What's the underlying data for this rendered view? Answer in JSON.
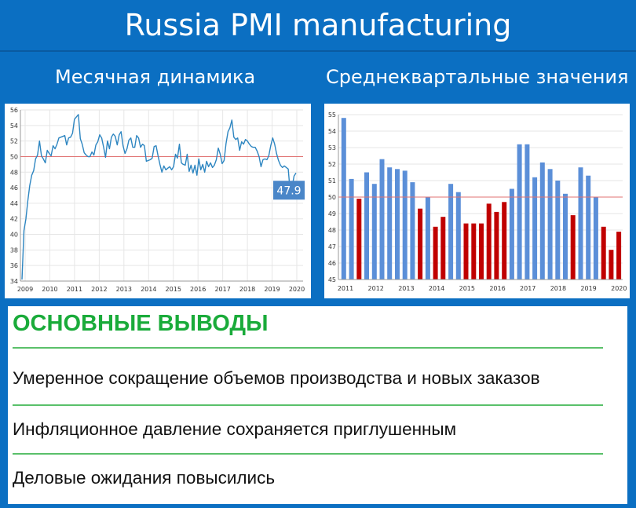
{
  "header": {
    "title": "Russia PMI manufacturing"
  },
  "left_title": "Месячная динамика",
  "right_title": "Среднеквартальные значения",
  "conclusions": {
    "heading": "ОСНОВНЫЕ ВЫВОДЫ",
    "items": [
      "Умеренное сокращение объемов производства и новых заказов",
      "Инфляционное давление сохраняется приглушенным",
      "Деловые ожидания повысились"
    ]
  },
  "chart_data": [
    {
      "type": "line",
      "x_ticks": [
        "2009",
        "2010",
        "2011",
        "2012",
        "2013",
        "2014",
        "2015",
        "2016",
        "2017",
        "2018",
        "2019",
        "2020"
      ],
      "y_ticks": [
        34,
        36,
        38,
        40,
        42,
        44,
        46,
        48,
        50,
        52,
        54,
        56
      ],
      "ylim": [
        34,
        56
      ],
      "grid": true,
      "reference_line": 50,
      "last_value_label": "47.9",
      "colors": {
        "line": "#2e86c1",
        "reference": "#e07070",
        "label_bg": "#4a86c8"
      },
      "series": [
        {
          "values": [
            34.2,
            40.5,
            42.0,
            44.3,
            46.3,
            47.6,
            48.2,
            49.7,
            50.2,
            52.0,
            50.1,
            49.7,
            49.2,
            50.8,
            50.4,
            50.1,
            51.4,
            51.0,
            51.6,
            52.4,
            52.5,
            52.6,
            52.7,
            51.5,
            52.4,
            52.5,
            53.0,
            54.8,
            55.1,
            55.4,
            52.3,
            51.6,
            50.5,
            50.2,
            50.0,
            50.0,
            50.6,
            50.2,
            51.5,
            51.9,
            52.8,
            52.4,
            51.2,
            49.9,
            52.0,
            51.0,
            52.5,
            52.9,
            52.6,
            51.5,
            52.8,
            53.2,
            51.4,
            50.4,
            51.0,
            52.1,
            52.4,
            51.2,
            51.2,
            52.7,
            52.4,
            51.2,
            51.6,
            51.4,
            49.4,
            49.5,
            49.6,
            49.8,
            51.3,
            51.4,
            50.1,
            49.0,
            48.0,
            48.8,
            48.3,
            48.5,
            48.7,
            48.3,
            48.7,
            50.3,
            49.8,
            51.6,
            49.2,
            49.0,
            48.9,
            50.3,
            48.1,
            48.9,
            47.9,
            48.9,
            47.6,
            49.7,
            48.3,
            49.0,
            48.0,
            49.4,
            48.7,
            49.2,
            48.6,
            48.9,
            49.6,
            51.1,
            50.3,
            49.1,
            49.5,
            51.7,
            53.2,
            53.7,
            54.7,
            52.5,
            52.2,
            52.4,
            50.8,
            51.9,
            51.6,
            52.2,
            52.0,
            51.6,
            51.3,
            51.2,
            51.2,
            50.7,
            50.0,
            48.7,
            49.6,
            49.7,
            49.6,
            50.1,
            51.4,
            52.4,
            51.6,
            50.4,
            49.5,
            48.9,
            48.6,
            48.8,
            48.6,
            48.4,
            45.4,
            46.1,
            47.5,
            47.9
          ]
        }
      ]
    },
    {
      "type": "bar",
      "x_ticks": [
        "2011",
        "2012",
        "2013",
        "2014",
        "2015",
        "2016",
        "2017",
        "2018",
        "2019",
        "2020"
      ],
      "y_ticks": [
        45,
        46,
        47,
        48,
        49,
        50,
        51,
        52,
        53,
        54,
        55
      ],
      "ylim": [
        45,
        55
      ],
      "grid": true,
      "reference_line": 50,
      "colors": {
        "above_50": "#5b8fd8",
        "below_50": "#c00000",
        "reference": "#e07070"
      },
      "values": [
        54.8,
        51.1,
        49.9,
        51.5,
        50.8,
        52.3,
        51.8,
        51.7,
        51.6,
        50.9,
        49.3,
        50.0,
        48.2,
        48.8,
        50.8,
        50.3,
        48.4,
        48.4,
        48.4,
        49.6,
        49.1,
        49.7,
        50.5,
        53.2,
        53.2,
        51.2,
        52.1,
        51.7,
        51.0,
        50.2,
        48.9,
        51.8,
        51.3,
        50.0,
        48.2,
        46.8,
        47.9
      ]
    }
  ]
}
